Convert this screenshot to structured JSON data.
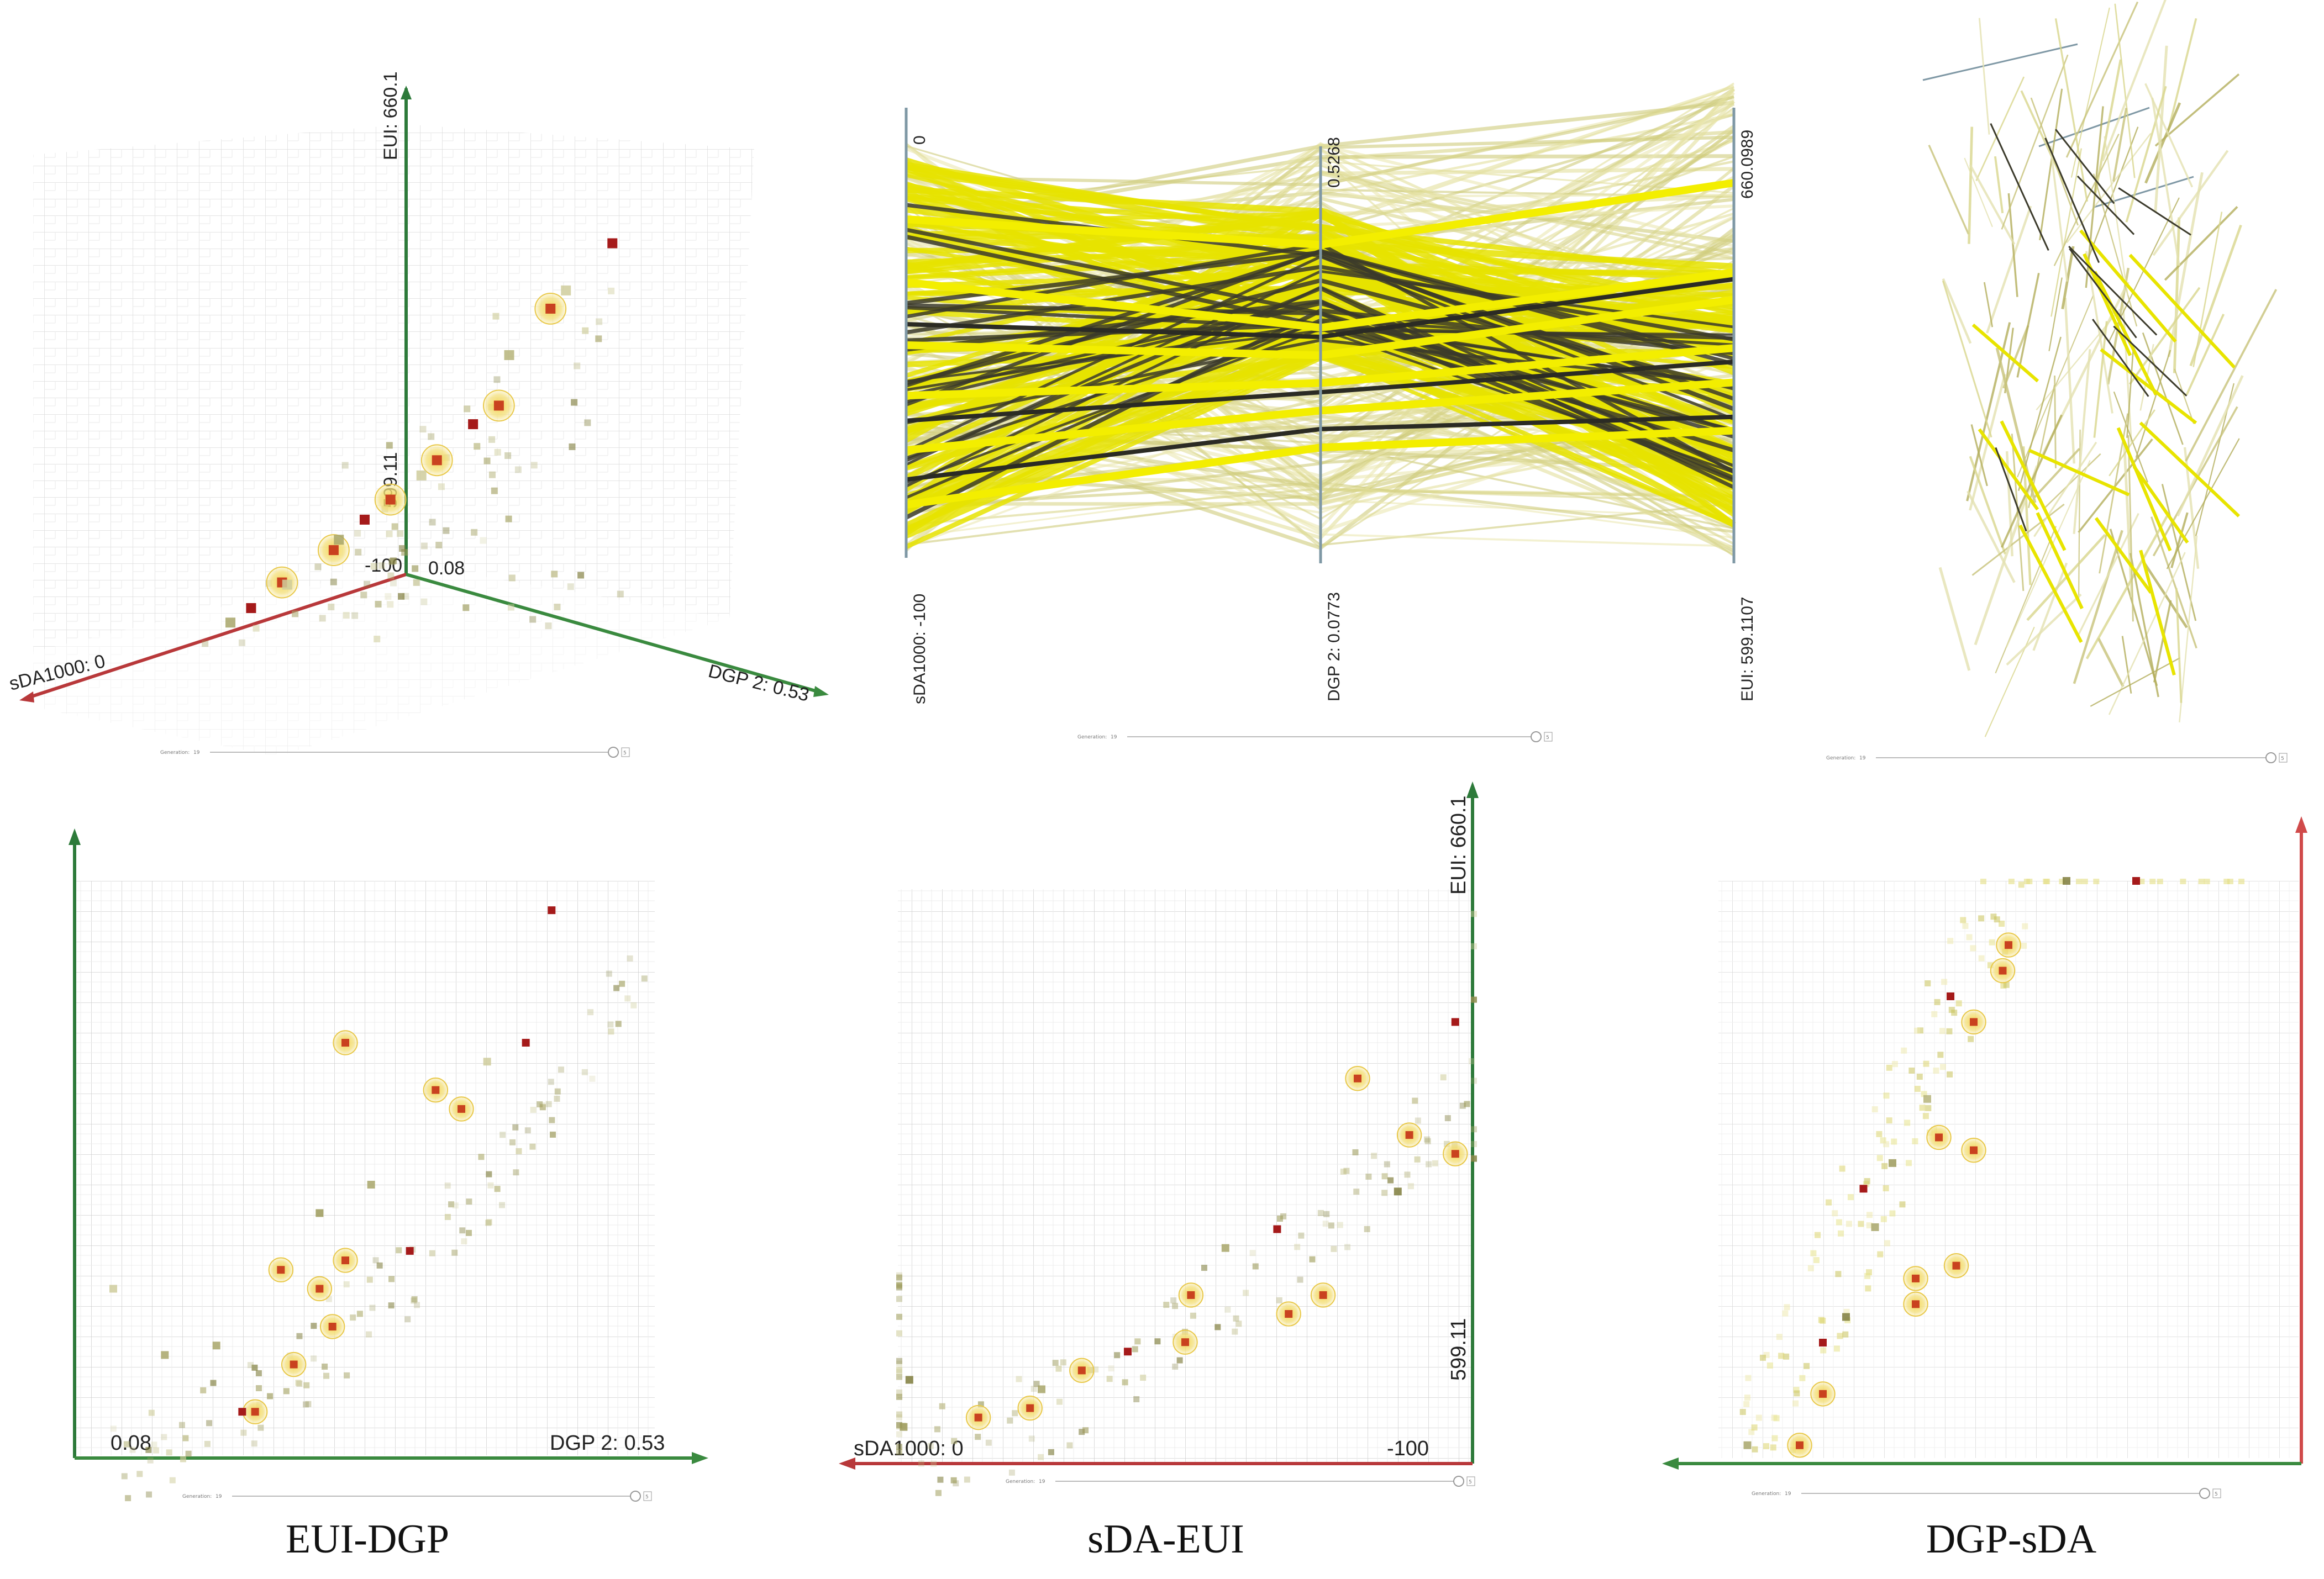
{
  "figure": {
    "captions": [
      "EUI-DGP",
      "sDA-EUI",
      "DGP-sDA"
    ],
    "slider_label": "Generation:",
    "slider_value": "19",
    "slider_end": "5"
  },
  "chart_data": [
    {
      "id": "scatter3d",
      "type": "scatter",
      "title": "",
      "axes": {
        "x": {
          "label_min": "-100",
          "label_max": "sDA1000: 0",
          "min": -100,
          "max": 0
        },
        "y": {
          "label_min": "0.08",
          "label_max": "DGP 2: 0.53",
          "min": 0.08,
          "max": 0.53
        },
        "z": {
          "label_min": "599.11",
          "label_max": "EUI: 660.1",
          "min": 599.11,
          "max": 660.1
        }
      },
      "points": [
        {
          "sda": -10,
          "dgp": 0.4,
          "eui": 646,
          "kind": "selected"
        },
        {
          "sda": -20,
          "dgp": 0.34,
          "eui": 631,
          "kind": "selected"
        },
        {
          "sda": -40,
          "dgp": 0.3,
          "eui": 624,
          "kind": "selected"
        },
        {
          "sda": -55,
          "dgp": 0.27,
          "eui": 619,
          "kind": "selected"
        },
        {
          "sda": -70,
          "dgp": 0.22,
          "eui": 612,
          "kind": "selected"
        },
        {
          "sda": -85,
          "dgp": 0.18,
          "eui": 608,
          "kind": "selected"
        },
        {
          "sda": -5,
          "dgp": 0.5,
          "eui": 657,
          "kind": "red"
        },
        {
          "sda": -30,
          "dgp": 0.33,
          "eui": 629,
          "kind": "red"
        },
        {
          "sda": -60,
          "dgp": 0.24,
          "eui": 616,
          "kind": "red"
        },
        {
          "sda": -90,
          "dgp": 0.14,
          "eui": 604,
          "kind": "red"
        },
        {
          "sda": -15,
          "dgp": 0.45,
          "eui": 650,
          "kind": "normal"
        },
        {
          "sda": -25,
          "dgp": 0.38,
          "eui": 640,
          "kind": "normal"
        },
        {
          "sda": -45,
          "dgp": 0.29,
          "eui": 622,
          "kind": "normal"
        },
        {
          "sda": -65,
          "dgp": 0.21,
          "eui": 613,
          "kind": "normal"
        },
        {
          "sda": -80,
          "dgp": 0.17,
          "eui": 607,
          "kind": "normal"
        },
        {
          "sda": -95,
          "dgp": 0.12,
          "eui": 602,
          "kind": "normal"
        }
      ]
    },
    {
      "id": "parallel",
      "type": "line",
      "title": "",
      "axes": [
        {
          "name": "sDA1000",
          "label_top": "0",
          "label_bottom": "sDA1000: -100",
          "min": -100,
          "max": 0
        },
        {
          "name": "DGP 2",
          "label_top": "0.5268",
          "label_bottom": "DGP 2: 0.0773",
          "min": 0.0773,
          "max": 0.5268
        },
        {
          "name": "EUI",
          "label_top": "660.0989",
          "label_bottom": "EUI: 599.1107",
          "min": 599.1107,
          "max": 660.0989
        }
      ],
      "series": [
        {
          "name": "selected",
          "values": [
            [
              -20,
              0.42,
              654
            ],
            [
              -35,
              0.33,
              641
            ],
            [
              -50,
              0.3,
              637
            ],
            [
              -62,
              0.27,
              630
            ],
            [
              -75,
              0.24,
              625
            ],
            [
              -88,
              0.2,
              618
            ]
          ]
        },
        {
          "name": "dark",
          "values": [
            [
              -45,
              0.32,
              640
            ],
            [
              -68,
              0.26,
              628
            ],
            [
              -82,
              0.22,
              620
            ]
          ]
        }
      ]
    },
    {
      "id": "eui_dgp",
      "type": "scatter",
      "title": "EUI-DGP",
      "xlabel": "DGP 2: 0.53",
      "xlabel_min": "0.08",
      "x_range": [
        0.08,
        0.53
      ],
      "y_range": [
        599.11,
        660.1
      ],
      "points": [
        {
          "dgp": 0.29,
          "eui": 643,
          "kind": "selected"
        },
        {
          "dgp": 0.36,
          "eui": 638,
          "kind": "selected"
        },
        {
          "dgp": 0.38,
          "eui": 636,
          "kind": "selected"
        },
        {
          "dgp": 0.29,
          "eui": 620,
          "kind": "selected"
        },
        {
          "dgp": 0.24,
          "eui": 619,
          "kind": "selected"
        },
        {
          "dgp": 0.27,
          "eui": 617,
          "kind": "selected"
        },
        {
          "dgp": 0.28,
          "eui": 613,
          "kind": "selected"
        },
        {
          "dgp": 0.25,
          "eui": 609,
          "kind": "selected"
        },
        {
          "dgp": 0.22,
          "eui": 604,
          "kind": "selected"
        },
        {
          "dgp": 0.45,
          "eui": 657,
          "kind": "red"
        },
        {
          "dgp": 0.43,
          "eui": 643,
          "kind": "red"
        },
        {
          "dgp": 0.34,
          "eui": 621,
          "kind": "red"
        },
        {
          "dgp": 0.21,
          "eui": 604,
          "kind": "red"
        },
        {
          "dgp": 0.27,
          "eui": 625,
          "kind": "normal"
        },
        {
          "dgp": 0.31,
          "eui": 628,
          "kind": "normal"
        },
        {
          "dgp": 0.19,
          "eui": 611,
          "kind": "normal"
        },
        {
          "dgp": 0.15,
          "eui": 610,
          "kind": "normal"
        },
        {
          "dgp": 0.4,
          "eui": 641,
          "kind": "normal"
        },
        {
          "dgp": 0.11,
          "eui": 617,
          "kind": "normal"
        }
      ]
    },
    {
      "id": "sda_eui",
      "type": "scatter",
      "title": "sDA-EUI",
      "xlabel": "sDA1000: 0",
      "xlabel_right": "-100",
      "ylabel": "EUI: 660.1",
      "ylabel_min": "599.11",
      "x_range": [
        0,
        -100
      ],
      "y_range": [
        599.11,
        660.1
      ],
      "points": [
        {
          "sda": -80,
          "eui": 640,
          "kind": "selected"
        },
        {
          "sda": -89,
          "eui": 634,
          "kind": "selected"
        },
        {
          "sda": -97,
          "eui": 632,
          "kind": "selected"
        },
        {
          "sda": -51,
          "eui": 617,
          "kind": "selected"
        },
        {
          "sda": -50,
          "eui": 612,
          "kind": "selected"
        },
        {
          "sda": -74,
          "eui": 617,
          "kind": "selected"
        },
        {
          "sda": -68,
          "eui": 615,
          "kind": "selected"
        },
        {
          "sda": -32,
          "eui": 609,
          "kind": "selected"
        },
        {
          "sda": -23,
          "eui": 605,
          "kind": "selected"
        },
        {
          "sda": -14,
          "eui": 604,
          "kind": "selected"
        },
        {
          "sda": -97,
          "eui": 646,
          "kind": "red"
        },
        {
          "sda": -66,
          "eui": 624,
          "kind": "red"
        },
        {
          "sda": -40,
          "eui": 611,
          "kind": "red"
        },
        {
          "sda": -25,
          "eui": 607,
          "kind": "normal"
        },
        {
          "sda": -57,
          "eui": 622,
          "kind": "normal"
        },
        {
          "sda": -87,
          "eui": 628,
          "kind": "normal"
        },
        {
          "sda": -2,
          "eui": 608,
          "kind": "normal"
        },
        {
          "sda": -1,
          "eui": 603,
          "kind": "normal"
        }
      ]
    },
    {
      "id": "dgp_sda",
      "type": "scatter",
      "title": "DGP-sDA",
      "x_range": [
        0,
        -100
      ],
      "y_range": [
        0.08,
        0.53
      ],
      "points": [
        {
          "sda": -50,
          "dgp": 0.48,
          "kind": "selected"
        },
        {
          "sda": -49,
          "dgp": 0.46,
          "kind": "selected"
        },
        {
          "sda": -44,
          "dgp": 0.42,
          "kind": "selected"
        },
        {
          "sda": -38,
          "dgp": 0.33,
          "kind": "selected"
        },
        {
          "sda": -44,
          "dgp": 0.32,
          "kind": "selected"
        },
        {
          "sda": -41,
          "dgp": 0.23,
          "kind": "selected"
        },
        {
          "sda": -34,
          "dgp": 0.22,
          "kind": "selected"
        },
        {
          "sda": -34,
          "dgp": 0.2,
          "kind": "selected"
        },
        {
          "sda": -18,
          "dgp": 0.13,
          "kind": "selected"
        },
        {
          "sda": -14,
          "dgp": 0.09,
          "kind": "selected"
        },
        {
          "sda": -72,
          "dgp": 0.53,
          "kind": "red"
        },
        {
          "sda": -40,
          "dgp": 0.44,
          "kind": "red"
        },
        {
          "sda": -25,
          "dgp": 0.29,
          "kind": "red"
        },
        {
          "sda": -18,
          "dgp": 0.17,
          "kind": "red"
        },
        {
          "sda": -36,
          "dgp": 0.36,
          "kind": "normal"
        },
        {
          "sda": -30,
          "dgp": 0.31,
          "kind": "normal"
        },
        {
          "sda": -27,
          "dgp": 0.26,
          "kind": "normal"
        },
        {
          "sda": -22,
          "dgp": 0.19,
          "kind": "normal"
        },
        {
          "sda": -60,
          "dgp": 0.53,
          "kind": "normal"
        },
        {
          "sda": -5,
          "dgp": 0.09,
          "kind": "normal"
        }
      ]
    }
  ]
}
